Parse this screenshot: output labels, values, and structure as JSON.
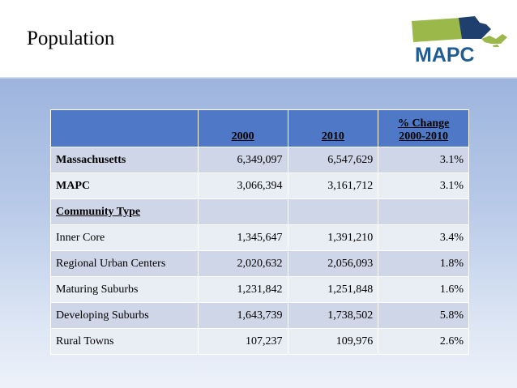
{
  "slide": {
    "title": "Population"
  },
  "logo": {
    "text": "MAPC"
  },
  "table": {
    "header": {
      "col1": "",
      "col2": "2000",
      "col3": "2010",
      "col4_line1": "% Change",
      "col4_line2": "2000-2010"
    },
    "rows": [
      {
        "label": "Massachusetts",
        "v2000": "6,349,097",
        "v2010": "6,547,629",
        "change": "3.1%"
      },
      {
        "label": "MAPC",
        "v2000": "3,066,394",
        "v2010": "3,161,712",
        "change": "3.1%"
      },
      {
        "label": "Community Type",
        "v2000": "",
        "v2010": "",
        "change": ""
      },
      {
        "label": "Inner Core",
        "v2000": "1,345,647",
        "v2010": "1,391,210",
        "change": "3.4%"
      },
      {
        "label": "Regional Urban Centers",
        "v2000": "2,020,632",
        "v2010": "2,056,093",
        "change": "1.8%"
      },
      {
        "label": "Maturing Suburbs",
        "v2000": "1,231,842",
        "v2010": "1,251,848",
        "change": "1.6%"
      },
      {
        "label": "Developing Suburbs",
        "v2000": "1,643,739",
        "v2010": "1,738,502",
        "change": "5.8%"
      },
      {
        "label": "Rural Towns",
        "v2000": "107,237",
        "v2010": "109,976",
        "change": "2.6%"
      }
    ]
  },
  "colors": {
    "header_fill": "#4f79c6",
    "row_dark": "#cfd6e7",
    "row_light": "#e9edf4",
    "logo_green": "#9bb84a",
    "logo_navy": "#1f3f6e",
    "logo_text": "#1f5c91"
  }
}
